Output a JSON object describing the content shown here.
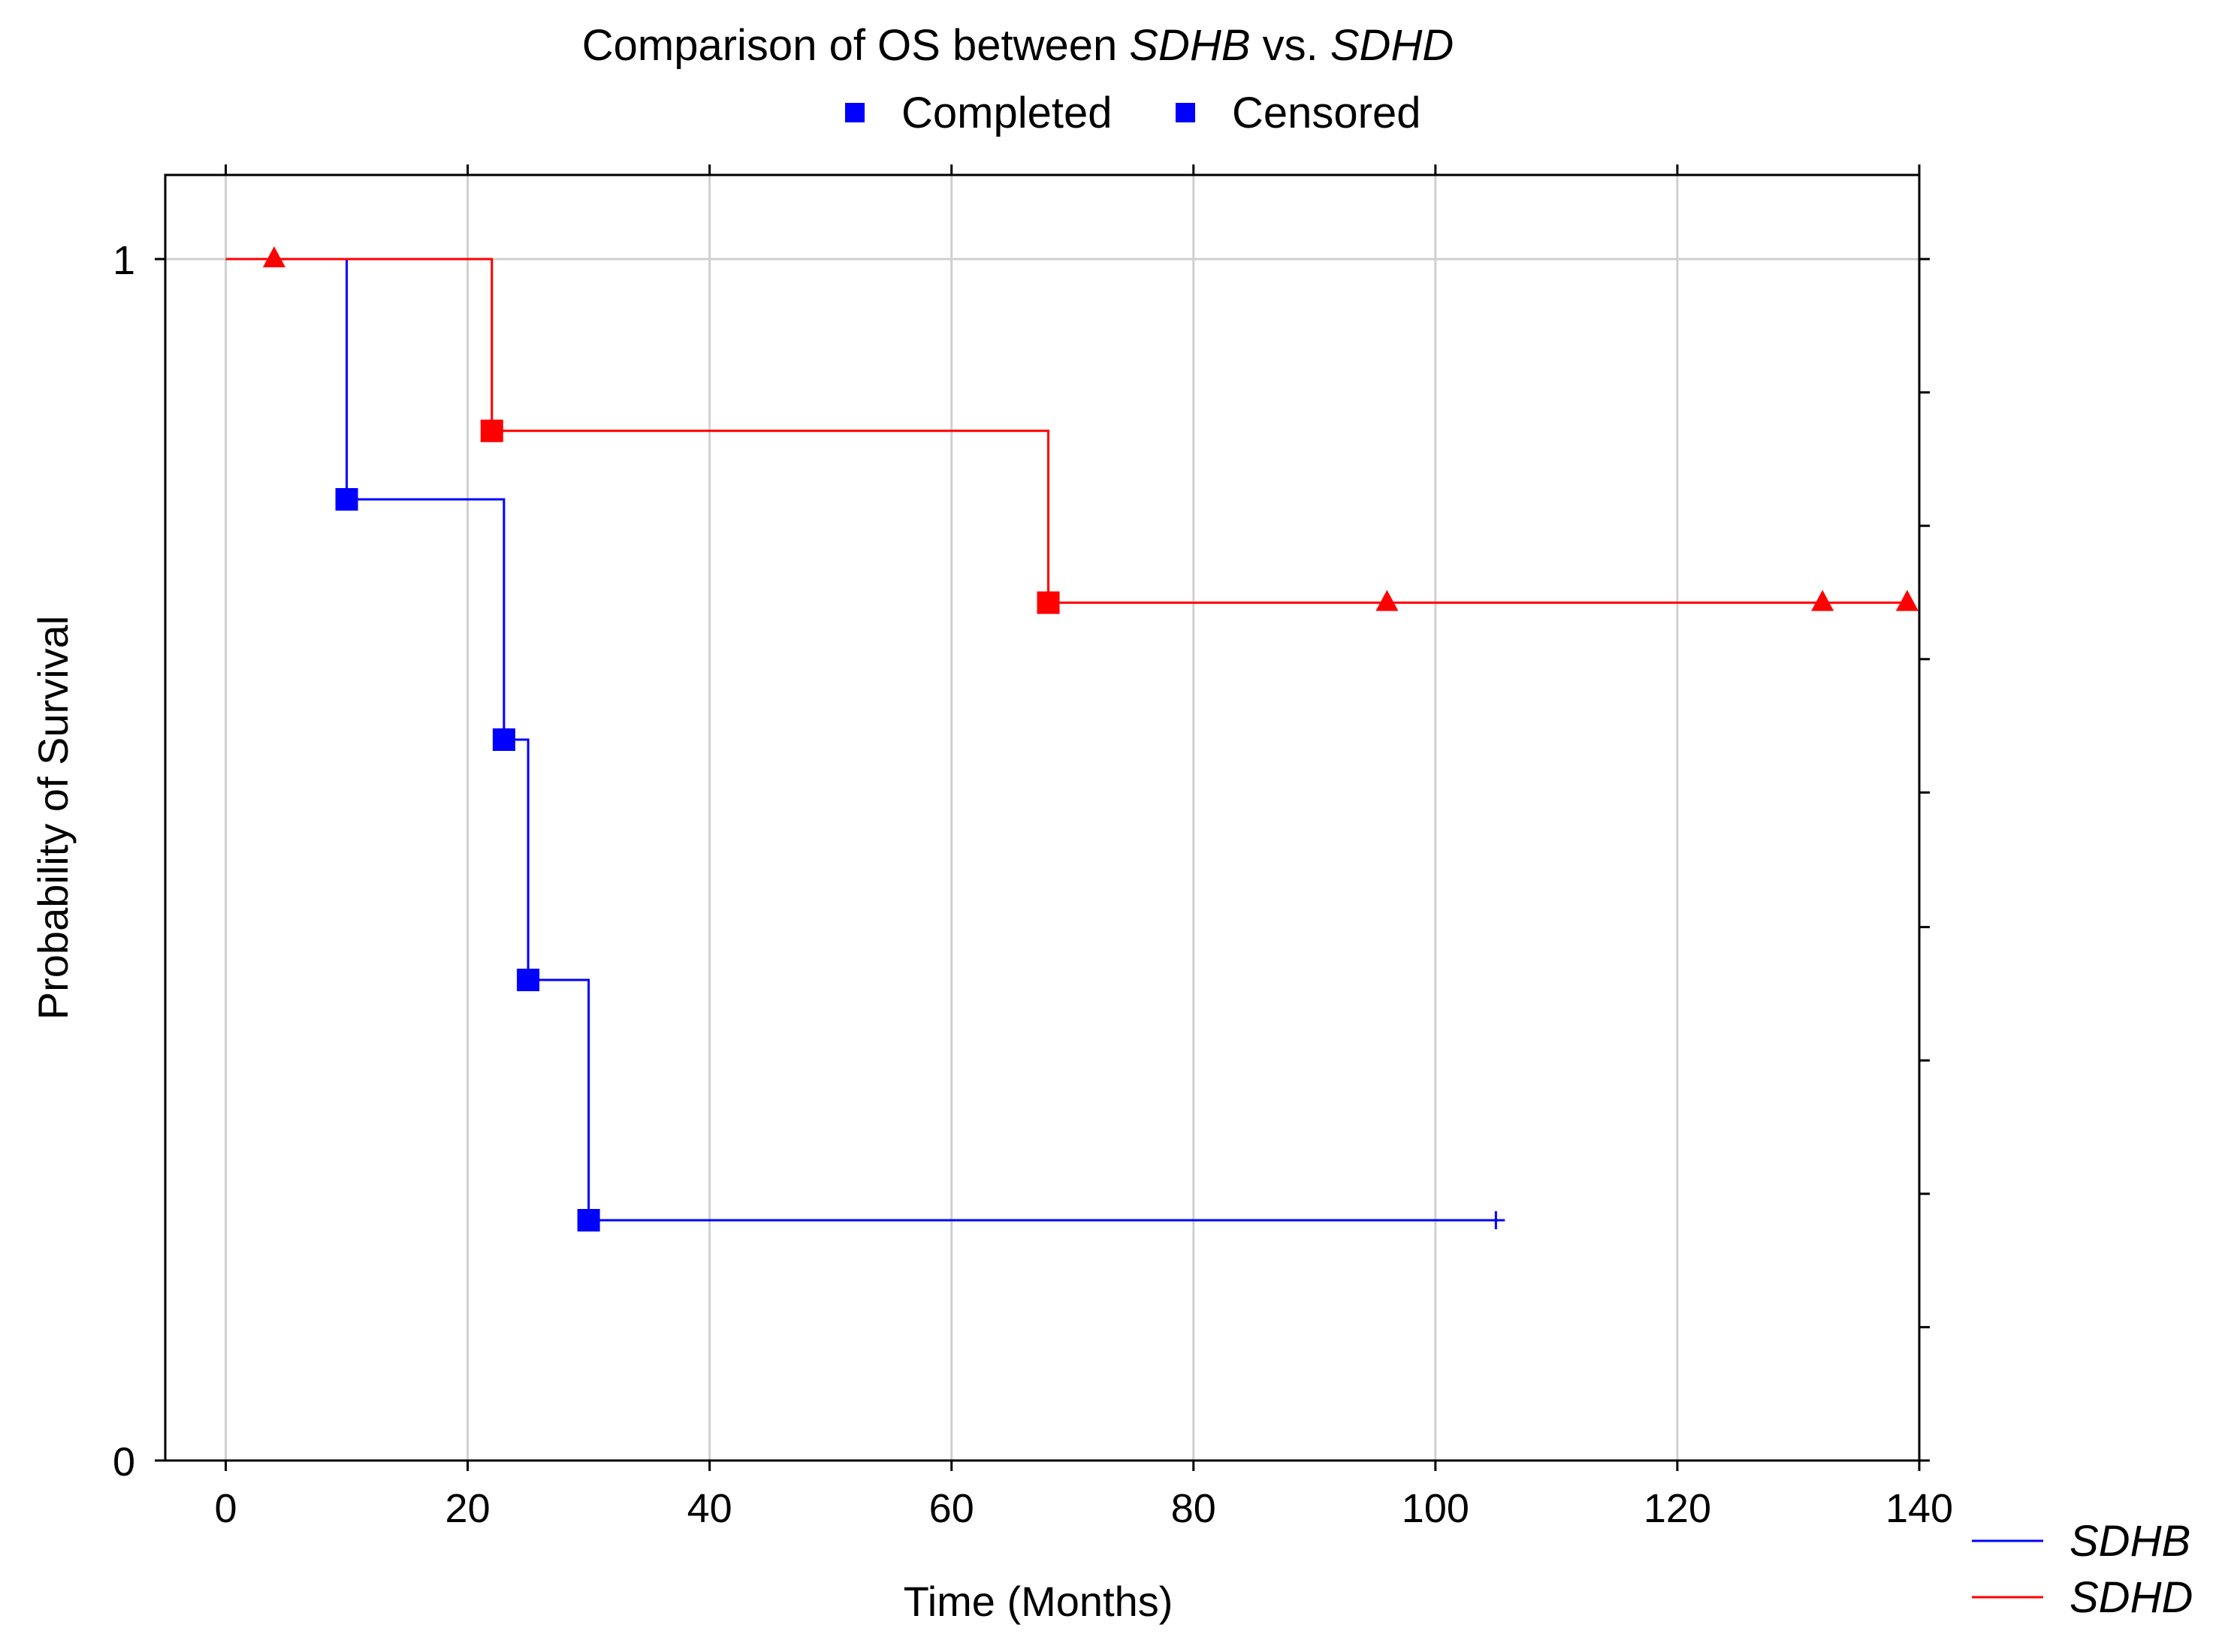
{
  "chart_data": {
    "type": "line",
    "title": {
      "prefix": "Comparison of OS between ",
      "series_a": "SDHB",
      "middle": " vs. ",
      "series_b": "SDHD"
    },
    "marker_legend": [
      {
        "label": "Completed",
        "color": "#0000FF",
        "marker": "square"
      },
      {
        "label": "Censored",
        "color": "#0000FF",
        "marker": "square"
      }
    ],
    "xlabel": "Time (Months)",
    "ylabel": "Probability of Survival",
    "xlim": [
      -5,
      140
    ],
    "ylim": [
      0,
      1.07
    ],
    "x_ticks": [
      0,
      20,
      40,
      60,
      80,
      100,
      120,
      140
    ],
    "x_tick_labels": [
      "0",
      "20",
      "40",
      "60",
      "80",
      "100",
      "120",
      "140"
    ],
    "y_ticks": [
      0,
      1
    ],
    "y_tick_labels": [
      "0",
      "1"
    ],
    "y_minor_ticks": [
      0.111,
      0.222,
      0.333,
      0.444,
      0.556,
      0.667,
      0.778,
      0.889
    ],
    "grid": true,
    "series": [
      {
        "name": "SDHB",
        "color": "#0000FF",
        "steps": [
          [
            0,
            1.0
          ],
          [
            10,
            0.8
          ],
          [
            23,
            0.6
          ],
          [
            25,
            0.4
          ],
          [
            30,
            0.2
          ]
        ],
        "end_x": 105,
        "events": [
          [
            10,
            0.8
          ],
          [
            23,
            0.6
          ],
          [
            25,
            0.4
          ],
          [
            30,
            0.2
          ]
        ],
        "censored": [
          [
            105,
            0.2
          ]
        ],
        "censor_marker": "plus"
      },
      {
        "name": "SDHD",
        "color": "#FF0000",
        "steps": [
          [
            0,
            1.0
          ],
          [
            22,
            0.857
          ],
          [
            68,
            0.714
          ]
        ],
        "end_x": 139,
        "events": [
          [
            22,
            0.857
          ],
          [
            68,
            0.714
          ]
        ],
        "censored": [
          [
            4,
            1.0
          ],
          [
            96,
            0.714
          ],
          [
            132,
            0.714
          ],
          [
            139,
            0.714
          ]
        ],
        "censor_marker": "triangle"
      }
    ]
  }
}
